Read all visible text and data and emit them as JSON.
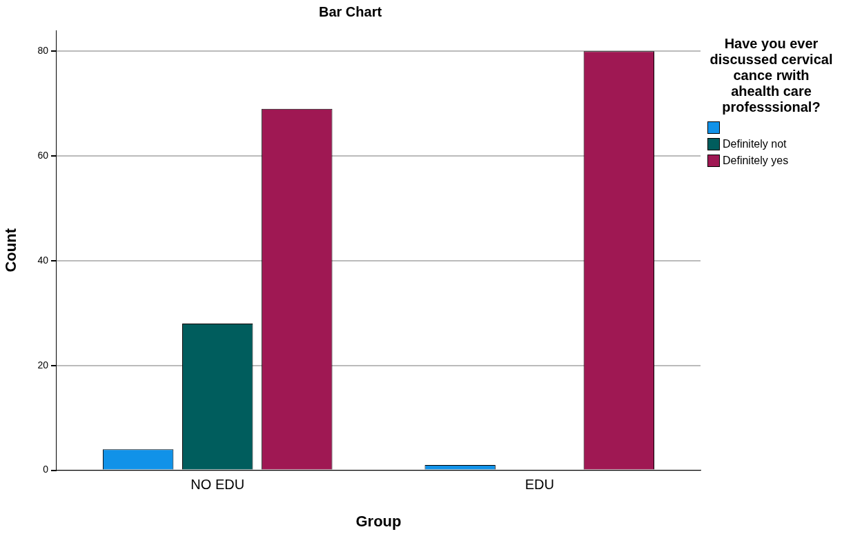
{
  "chart_data": {
    "type": "bar",
    "title": "Bar Chart",
    "xlabel": "Group",
    "ylabel": "Count",
    "legend_title": "Have you ever discussed cervical cance rwith  ahealth care professsional?",
    "categories": [
      "NO EDU",
      "EDU"
    ],
    "series": [
      {
        "color": "#1192e8",
        "values": [
          4,
          1
        ]
      },
      {
        "name": "Definitely not",
        "color": "#005d5d",
        "values": [
          28,
          null
        ]
      },
      {
        "name": "Definitely yes",
        "color": "#9f1853",
        "values": [
          69,
          80
        ]
      }
    ],
    "ylim": [
      0,
      84
    ],
    "yticks": [
      0,
      20,
      40,
      60,
      80
    ],
    "grid": "y",
    "legend": "right"
  }
}
